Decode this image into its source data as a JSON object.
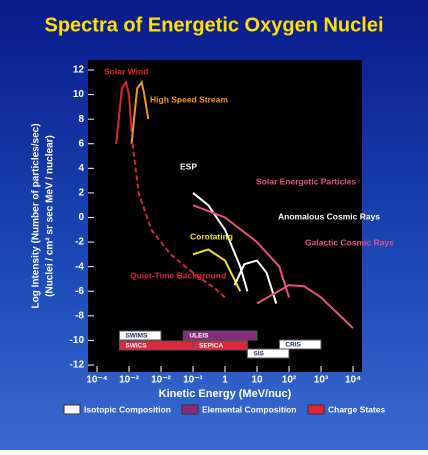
{
  "chart_data": {
    "type": "line",
    "title": "Spectra of Energetic Oxygen Nuclei",
    "y_label": "Log Intensity (Number of particles/sec)",
    "y_label2": "(Nuclei / cm² sr sec MeV / nuclear)",
    "x_label": "Kinetic Energy (MeV/nuc)",
    "x_log": true,
    "xlim": [
      0.0001,
      10000
    ],
    "ylim": [
      -12,
      13
    ],
    "xticks": [
      {
        "value": 0.0001,
        "label": "10⁻⁴"
      },
      {
        "value": 0.001,
        "label": "10⁻³"
      },
      {
        "value": 0.01,
        "label": "10⁻²"
      },
      {
        "value": 0.1,
        "label": "10⁻¹"
      },
      {
        "value": 1,
        "label": "1"
      },
      {
        "value": 10,
        "label": "10"
      },
      {
        "value": 100,
        "label": "10²"
      },
      {
        "value": 1000,
        "label": "10³"
      },
      {
        "value": 10000,
        "label": "10⁴"
      }
    ],
    "yticks": [
      12,
      10,
      8,
      6,
      4,
      2,
      0,
      -2,
      -4,
      -6,
      -8,
      -10,
      -12
    ],
    "series": [
      {
        "name": "Solar Wind",
        "color": "#e0262c",
        "dashed": false,
        "x": [
          0.0004,
          0.0006,
          0.0008,
          0.001,
          0.0012
        ],
        "values": [
          6,
          10.5,
          11,
          10,
          7
        ]
      },
      {
        "name": "High Speed Stream",
        "color": "#f0961e",
        "dashed": false,
        "x": [
          0.0012,
          0.0018,
          0.0025,
          0.003,
          0.004
        ],
        "values": [
          6,
          10.5,
          11,
          10,
          8
        ]
      },
      {
        "name": "Quiet-Time Background",
        "color": "#d8263a",
        "dashed": true,
        "x": [
          0.0013,
          0.002,
          0.005,
          0.02,
          0.1,
          0.5,
          1
        ],
        "values": [
          6,
          2,
          -1,
          -3,
          -4.5,
          -5.8,
          -6.5
        ]
      },
      {
        "name": "ESP",
        "color": "#ffffff",
        "dashed": false,
        "x": [
          0.1,
          0.3,
          1,
          3,
          5
        ],
        "values": [
          2,
          1,
          -1,
          -4,
          -6
        ]
      },
      {
        "name": "Solar Energetic Particles",
        "color": "#e8508a",
        "dashed": false,
        "x": [
          0.1,
          1,
          10,
          50,
          100
        ],
        "values": [
          1,
          0,
          -2,
          -4,
          -6.5
        ]
      },
      {
        "name": "Corotating",
        "color": "#f0e020",
        "dashed": false,
        "x": [
          0.1,
          0.3,
          1,
          3
        ],
        "values": [
          -3,
          -2.6,
          -3.5,
          -6
        ]
      },
      {
        "name": "Anomalous Cosmic Rays",
        "color": "#ffffff",
        "dashed": false,
        "x": [
          2,
          4,
          10,
          20,
          40
        ],
        "values": [
          -5.5,
          -3.8,
          -3.5,
          -4.5,
          -7
        ]
      },
      {
        "name": "Galactic Cosmic Rays",
        "color": "#e8508a",
        "dashed": false,
        "x": [
          10,
          100,
          300,
          1000,
          10000
        ],
        "values": [
          -7,
          -5.5,
          -5.6,
          -6.5,
          -9
        ]
      }
    ],
    "instruments": [
      {
        "name": "SWIMS",
        "range": [
          0.0005,
          0.01
        ],
        "kind": 0
      },
      {
        "name": "SWICS",
        "range": [
          0.0005,
          0.1
        ],
        "kind": 2
      },
      {
        "name": "ULEIS",
        "range": [
          0.05,
          10
        ],
        "kind": 1
      },
      {
        "name": "SEPICA",
        "range": [
          0.1,
          5
        ],
        "kind": 2
      },
      {
        "name": "SIS",
        "range": [
          5,
          100
        ],
        "kind": 0
      },
      {
        "name": "CRIS",
        "range": [
          50,
          1000
        ],
        "kind": 0
      }
    ],
    "legend": [
      {
        "label": "Isotopic Composition",
        "color": "#ffffff"
      },
      {
        "label": "Elemental Composition",
        "color": "#8a2a7a"
      },
      {
        "label": "Charge States",
        "color": "#e0263a"
      }
    ]
  }
}
